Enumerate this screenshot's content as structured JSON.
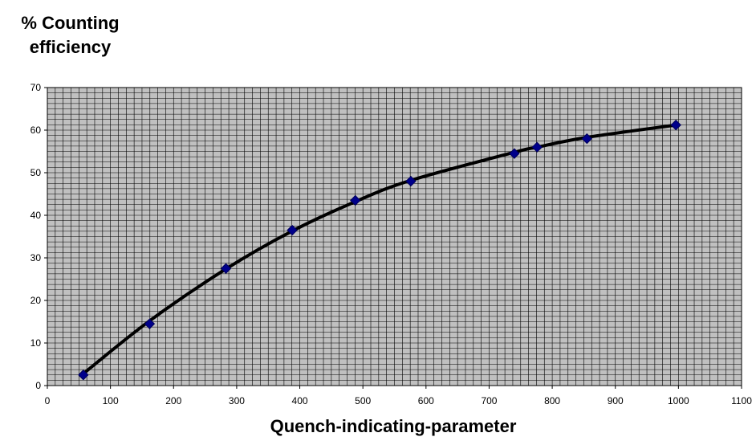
{
  "chart_data": {
    "type": "scatter",
    "title": "",
    "ylabel_lines": [
      "% Counting",
      "efficiency"
    ],
    "xlabel": "Quench-indicating-parameter",
    "xlim": [
      0,
      1100
    ],
    "ylim": [
      0,
      70
    ],
    "x_ticks": [
      0,
      100,
      200,
      300,
      400,
      500,
      600,
      700,
      800,
      900,
      1000,
      1100
    ],
    "y_ticks": [
      0,
      10,
      20,
      30,
      40,
      50,
      60,
      70
    ],
    "x_tick_labels": [
      "0",
      "100",
      "200",
      "300",
      "400",
      "500",
      "600",
      "700",
      "800",
      "900",
      "1000",
      "1100"
    ],
    "y_tick_labels": [
      "0",
      "10",
      "20",
      "30",
      "40",
      "50",
      "60",
      "70"
    ],
    "grid": true,
    "plot_background": "#c0c0c0",
    "series": [
      {
        "marker": "diamond",
        "color": "#00008b",
        "x": [
          57,
          162,
          283,
          388,
          488,
          576,
          740,
          776,
          855,
          996
        ],
        "y": [
          2.5,
          14.5,
          27.5,
          36.5,
          43.5,
          48,
          54.5,
          56,
          58,
          61.2
        ]
      }
    ],
    "trendline": {
      "color": "#000000",
      "x": [
        57,
        162,
        283,
        388,
        488,
        576,
        740,
        776,
        855,
        996
      ],
      "y": [
        2.8,
        15.2,
        27.4,
        36.3,
        43.2,
        48.2,
        54.8,
        56,
        58.3,
        61.2
      ]
    }
  }
}
